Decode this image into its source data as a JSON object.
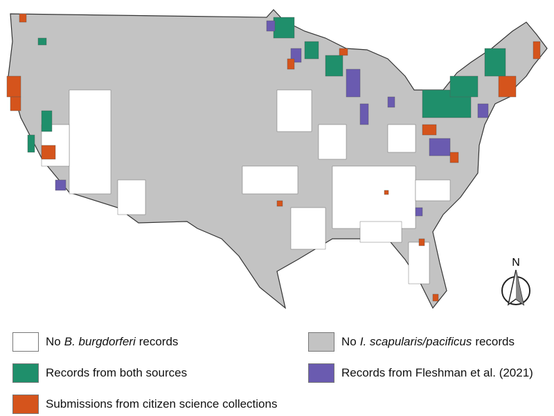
{
  "compass": "N",
  "legend": [
    {
      "prefix": "No",
      "italic": "B. burgdorferi",
      "suffix": "records",
      "color": "#ffffff"
    },
    {
      "prefix": "No",
      "italic": "I. scapularis/pacificus",
      "suffix": "records",
      "color": "#c3c3c3"
    },
    {
      "prefix": "Records from both sources",
      "color": "#1f8f6b"
    },
    {
      "prefix": "Records from Fleshman et al. (2021)",
      "color": "#6a5bb0"
    },
    {
      "prefix": "Submissions from citizen science collections",
      "color": "#d5541c"
    }
  ]
}
